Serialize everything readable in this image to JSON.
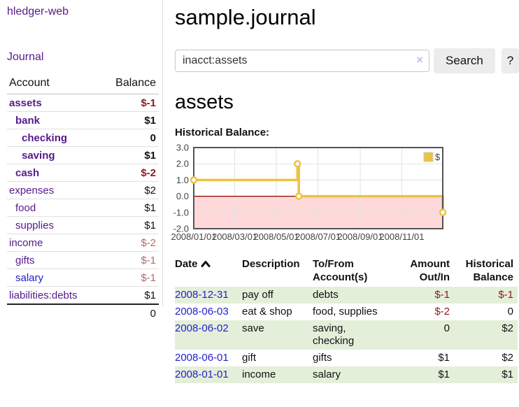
{
  "colors": {
    "link_purple": "#551a8b",
    "link_blue": "#2222cc",
    "negative_strong": "#8e1a1a",
    "negative_muted": "#b46a6a",
    "row_green": "#e4efda",
    "chart_line_yellow": "#edc240",
    "chart_negative_bg": "#ffd9d9",
    "chart_zero_line": "#8b0000",
    "chart_border": "#545454",
    "chart_grid": "#e2e2e2"
  },
  "sidebar": {
    "brand": "hledger-web",
    "nav_journal": "Journal",
    "table": {
      "account_header": "Account",
      "balance_header": "Balance"
    },
    "accounts": [
      {
        "name": "assets",
        "balance": "$-1",
        "level": 1,
        "bold": true,
        "negative": "strong"
      },
      {
        "name": "bank",
        "balance": "$1",
        "level": 2,
        "bold": true,
        "negative": null
      },
      {
        "name": "checking",
        "balance": "0",
        "level": 3,
        "bold": true,
        "negative": null
      },
      {
        "name": "saving",
        "balance": "$1",
        "level": 3,
        "bold": true,
        "negative": null
      },
      {
        "name": "cash",
        "balance": "$-2",
        "level": 2,
        "bold": true,
        "negative": "strong"
      },
      {
        "name": "expenses",
        "balance": "$2",
        "level": 1,
        "bold": false,
        "negative": null
      },
      {
        "name": "food",
        "balance": "$1",
        "level": 2,
        "bold": false,
        "negative": null
      },
      {
        "name": "supplies",
        "balance": "$1",
        "level": 2,
        "bold": false,
        "negative": null
      },
      {
        "name": "income",
        "balance": "$-2",
        "level": 1,
        "bold": false,
        "negative": "muted"
      },
      {
        "name": "gifts",
        "balance": "$-1",
        "level": 2,
        "bold": false,
        "negative": "muted"
      },
      {
        "name": "salary",
        "balance": "$-1",
        "level": 2,
        "bold": false,
        "negative": "muted",
        "link_color": "blue"
      },
      {
        "name": "liabilities:debts",
        "balance": "$1",
        "level": 1,
        "bold": false,
        "negative": null
      }
    ],
    "total": "0"
  },
  "main": {
    "title": "sample.journal",
    "search": {
      "value": "inacct:assets",
      "clear_icon": "×",
      "search_button": "Search",
      "help_button": "?"
    },
    "account_title": "assets",
    "chart_title": "Historical Balance:"
  },
  "chart_data": {
    "type": "line",
    "step": true,
    "title": "Historical Balance:",
    "series": [
      {
        "name": "$",
        "color": "#edc240",
        "points": [
          {
            "x": "2008-01-01",
            "y": 1
          },
          {
            "x": "2008-06-01",
            "y": 2
          },
          {
            "x": "2008-06-03",
            "y": 0
          },
          {
            "x": "2008-12-31",
            "y": -1
          }
        ]
      }
    ],
    "x_range": [
      "2008-01-01",
      "2008-12-31"
    ],
    "x_ticks": [
      "2008/01/01",
      "2008/03/01",
      "2008/05/01",
      "2008/07/01",
      "2008/09/01",
      "2008/11/01"
    ],
    "y_ticks": [
      3.0,
      2.0,
      1.0,
      0.0,
      -1.0,
      -2.0
    ],
    "ylim": [
      -2,
      3
    ],
    "grid": true,
    "legend_position": "top-right",
    "legend_label": "$",
    "negative_region_color": "#ffd9d9",
    "zero_line_color": "#8b0000"
  },
  "register": {
    "headers": {
      "date": "Date",
      "description": "Description",
      "tofrom": "To/From Account(s)",
      "amount": "Amount Out/In",
      "balance": "Historical Balance"
    },
    "rows": [
      {
        "date": "2008-12-31",
        "description": "pay off",
        "accounts": "debts",
        "amount": "$-1",
        "balance": "$-1"
      },
      {
        "date": "2008-06-03",
        "description": "eat & shop",
        "accounts": "food, supplies",
        "amount": "$-2",
        "balance": "0"
      },
      {
        "date": "2008-06-02",
        "description": "save",
        "accounts": "saving, checking",
        "amount": "0",
        "balance": "$2"
      },
      {
        "date": "2008-06-01",
        "description": "gift",
        "accounts": "gifts",
        "amount": "$1",
        "balance": "$2"
      },
      {
        "date": "2008-01-01",
        "description": "income",
        "accounts": "salary",
        "amount": "$1",
        "balance": "$1"
      }
    ]
  }
}
